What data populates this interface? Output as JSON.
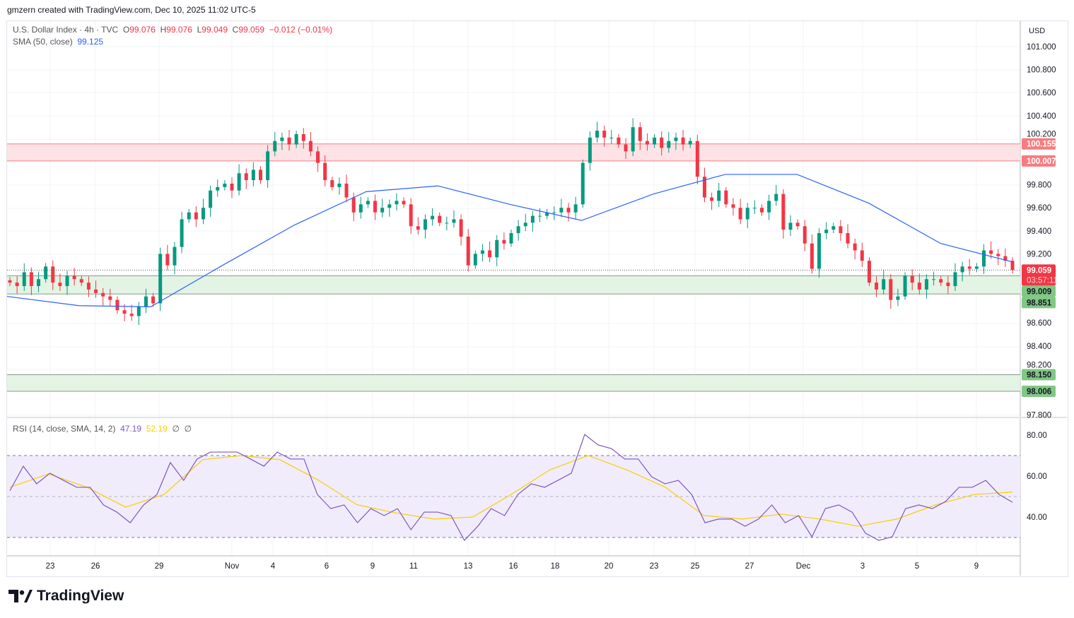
{
  "credit": "gmzern created with TradingView.com, Dec 10, 2025 11:02 UTC-5",
  "legend": {
    "symbol": "U.S. Dollar Index · 4h · TVC",
    "o_label": "O",
    "o": "99.076",
    "h_label": "H",
    "h": "99.076",
    "l_label": "L",
    "l": "99.049",
    "c_label": "C",
    "c": "99.059",
    "change": "−0.012 (−0.01%)",
    "sma_label": "SMA (50, close)",
    "sma_value": "99.125"
  },
  "rsi_legend": {
    "label": "RSI (14, close, SMA, 14, 2)",
    "rsi": "47.19",
    "rsi_sma": "52.19",
    "extra1": "∅",
    "extra2": "∅"
  },
  "currency": "USD",
  "logo": "TradingView",
  "colors": {
    "up": "#089981",
    "down": "#f23645",
    "sma": "#2962ff",
    "rsi": "#7e57c2",
    "rsi_sma": "#f5d000",
    "resistance": "#f23645",
    "support": "#4caf50"
  },
  "chart_data": [
    {
      "type": "candlestick",
      "title": "U.S. Dollar Index",
      "ylim": [
        97.8,
        101.0
      ],
      "yticks": [
        "101.000",
        "100.800",
        "100.600",
        "100.400",
        "100.200",
        "99.800",
        "99.600",
        "99.400",
        "99.200",
        "98.600",
        "98.400",
        "98.200",
        "97.800"
      ],
      "xticks": [
        "23",
        "26",
        "29",
        "Nov",
        "4",
        "6",
        "9",
        "11",
        "13",
        "16",
        "18",
        "20",
        "23",
        "25",
        "27",
        "Dec",
        "3",
        "5",
        "9"
      ],
      "close": [
        98.95,
        98.92,
        99.04,
        98.92,
        98.98,
        99.09,
        98.95,
        98.92,
        99.01,
        98.98,
        98.95,
        98.89,
        98.86,
        98.83,
        98.8,
        98.71,
        98.68,
        98.66,
        98.74,
        98.83,
        98.77,
        99.2,
        99.1,
        99.26,
        99.5,
        99.56,
        99.5,
        99.6,
        99.75,
        99.78,
        99.81,
        99.75,
        99.9,
        99.84,
        99.93,
        99.84,
        100.09,
        100.18,
        100.21,
        100.15,
        100.24,
        100.18,
        100.09,
        99.99,
        99.84,
        99.78,
        99.81,
        99.69,
        99.56,
        99.63,
        99.66,
        99.56,
        99.6,
        99.63,
        99.66,
        99.63,
        99.44,
        99.41,
        99.5,
        99.53,
        99.47,
        99.47,
        99.5,
        99.35,
        99.1,
        99.2,
        99.23,
        99.17,
        99.32,
        99.29,
        99.38,
        99.44,
        99.47,
        99.53,
        99.53,
        99.56,
        99.56,
        99.6,
        99.56,
        99.63,
        99.99,
        100.21,
        100.27,
        100.21,
        100.21,
        100.15,
        100.09,
        100.3,
        100.18,
        100.15,
        100.21,
        100.12,
        100.18,
        100.21,
        100.15,
        100.18,
        99.87,
        99.69,
        99.66,
        99.75,
        99.63,
        99.6,
        99.5,
        99.6,
        99.6,
        99.56,
        99.66,
        99.72,
        99.41,
        99.47,
        99.44,
        99.29,
        99.07,
        99.38,
        99.41,
        99.44,
        99.38,
        99.29,
        99.23,
        99.14,
        98.95,
        98.89,
        98.98,
        98.8,
        98.83,
        99.01,
        98.95,
        98.89,
        98.98,
        98.98,
        98.95,
        98.92,
        99.04,
        99.09,
        99.07,
        99.09,
        99.23,
        99.2,
        99.18,
        99.14,
        99.059
      ],
      "sma50": [
        98.83,
        98.75,
        98.74,
        99.1,
        99.45,
        99.74,
        99.79,
        99.63,
        99.49,
        99.72,
        99.89,
        99.89,
        99.64,
        99.29,
        99.13
      ],
      "zones": [
        {
          "kind": "resistance",
          "from": 100.007,
          "to": 100.155,
          "labels": [
            "100.155",
            "100.007"
          ]
        },
        {
          "kind": "support",
          "from": 98.851,
          "to": 99.009,
          "labels": [
            "99.009",
            "98.851"
          ]
        },
        {
          "kind": "support",
          "from": 98.006,
          "to": 98.15,
          "labels": [
            "98.150",
            "98.006"
          ]
        }
      ],
      "last_price": {
        "value": 99.059,
        "label": "99.059",
        "countdown": "03:57:11"
      }
    },
    {
      "type": "line",
      "title": "RSI",
      "ylim": [
        20,
        88
      ],
      "yticks": [
        "80.00",
        "60.00",
        "40.00"
      ],
      "bands": [
        30,
        50,
        70
      ],
      "rsi": [
        52.8,
        64.8,
        56.2,
        61.4,
        57.9,
        54.5,
        54.5,
        45.9,
        42.4,
        37.2,
        45.9,
        51.0,
        66.6,
        57.9,
        68.3,
        71.7,
        71.7,
        71.7,
        68.3,
        64.8,
        71.7,
        68.3,
        68.3,
        51.0,
        44.1,
        45.9,
        37.2,
        44.1,
        40.7,
        44.1,
        33.8,
        42.4,
        42.4,
        40.7,
        28.6,
        35.5,
        44.1,
        40.7,
        51.0,
        56.2,
        54.5,
        57.9,
        61.4,
        80.3,
        75.2,
        73.4,
        68.3,
        68.3,
        59.7,
        56.2,
        57.9,
        51.0,
        37.2,
        39.0,
        39.0,
        35.5,
        39.0,
        45.9,
        37.2,
        40.7,
        30.3,
        44.1,
        45.9,
        42.4,
        32.1,
        28.6,
        30.3,
        44.1,
        45.9,
        44.1,
        47.6,
        54.5,
        54.5,
        57.9,
        51.0,
        47.19
      ],
      "rsi_sma": [
        54.5,
        61.0,
        54.5,
        44.8,
        51.0,
        68.0,
        70.0,
        68.0,
        58.0,
        46.0,
        42.0,
        39.0,
        40.0,
        51.0,
        63.0,
        70.0,
        63.0,
        54.5,
        40.7,
        39.0,
        41.4,
        39.0,
        35.5,
        39.0,
        45.9,
        51.0,
        52.19
      ]
    }
  ]
}
